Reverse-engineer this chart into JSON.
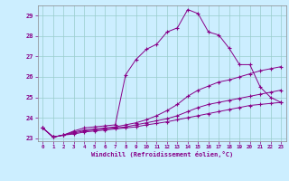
{
  "xlabel": "Windchill (Refroidissement éolien,°C)",
  "background_color": "#cceeff",
  "line_color": "#880088",
  "grid_color": "#99cccc",
  "xlim": [
    -0.5,
    23.5
  ],
  "ylim": [
    22.85,
    29.5
  ],
  "xticks": [
    0,
    1,
    2,
    3,
    4,
    5,
    6,
    7,
    8,
    9,
    10,
    11,
    12,
    13,
    14,
    15,
    16,
    17,
    18,
    19,
    20,
    21,
    22,
    23
  ],
  "yticks": [
    23,
    24,
    25,
    26,
    27,
    28,
    29
  ],
  "lines": [
    {
      "x": [
        0,
        1,
        2,
        3,
        4,
        5,
        6,
        7,
        8,
        9,
        10,
        11,
        12,
        13,
        14,
        15,
        16,
        17,
        18,
        19,
        20,
        21,
        22,
        23
      ],
      "y": [
        23.5,
        23.05,
        23.15,
        23.35,
        23.5,
        23.55,
        23.6,
        23.65,
        26.1,
        26.85,
        27.35,
        27.6,
        28.2,
        28.4,
        29.3,
        29.1,
        28.2,
        28.05,
        27.4,
        26.6,
        26.6,
        25.5,
        25.0,
        24.75
      ]
    },
    {
      "x": [
        0,
        1,
        2,
        3,
        4,
        5,
        6,
        7,
        8,
        9,
        10,
        11,
        12,
        13,
        14,
        15,
        16,
        17,
        18,
        19,
        20,
        21,
        22,
        23
      ],
      "y": [
        23.5,
        23.05,
        23.15,
        23.3,
        23.4,
        23.45,
        23.5,
        23.55,
        23.65,
        23.75,
        23.9,
        24.1,
        24.35,
        24.65,
        25.05,
        25.35,
        25.55,
        25.75,
        25.85,
        26.0,
        26.15,
        26.3,
        26.4,
        26.5
      ]
    },
    {
      "x": [
        0,
        1,
        2,
        3,
        4,
        5,
        6,
        7,
        8,
        9,
        10,
        11,
        12,
        13,
        14,
        15,
        16,
        17,
        18,
        19,
        20,
        21,
        22,
        23
      ],
      "y": [
        23.5,
        23.05,
        23.15,
        23.25,
        23.35,
        23.4,
        23.45,
        23.5,
        23.55,
        23.65,
        23.75,
        23.85,
        23.95,
        24.1,
        24.3,
        24.5,
        24.65,
        24.75,
        24.85,
        24.95,
        25.05,
        25.15,
        25.25,
        25.35
      ]
    },
    {
      "x": [
        0,
        1,
        2,
        3,
        4,
        5,
        6,
        7,
        8,
        9,
        10,
        11,
        12,
        13,
        14,
        15,
        16,
        17,
        18,
        19,
        20,
        21,
        22,
        23
      ],
      "y": [
        23.5,
        23.05,
        23.15,
        23.2,
        23.3,
        23.35,
        23.4,
        23.45,
        23.5,
        23.55,
        23.65,
        23.72,
        23.8,
        23.9,
        24.0,
        24.1,
        24.2,
        24.3,
        24.4,
        24.5,
        24.6,
        24.65,
        24.7,
        24.75
      ]
    }
  ]
}
